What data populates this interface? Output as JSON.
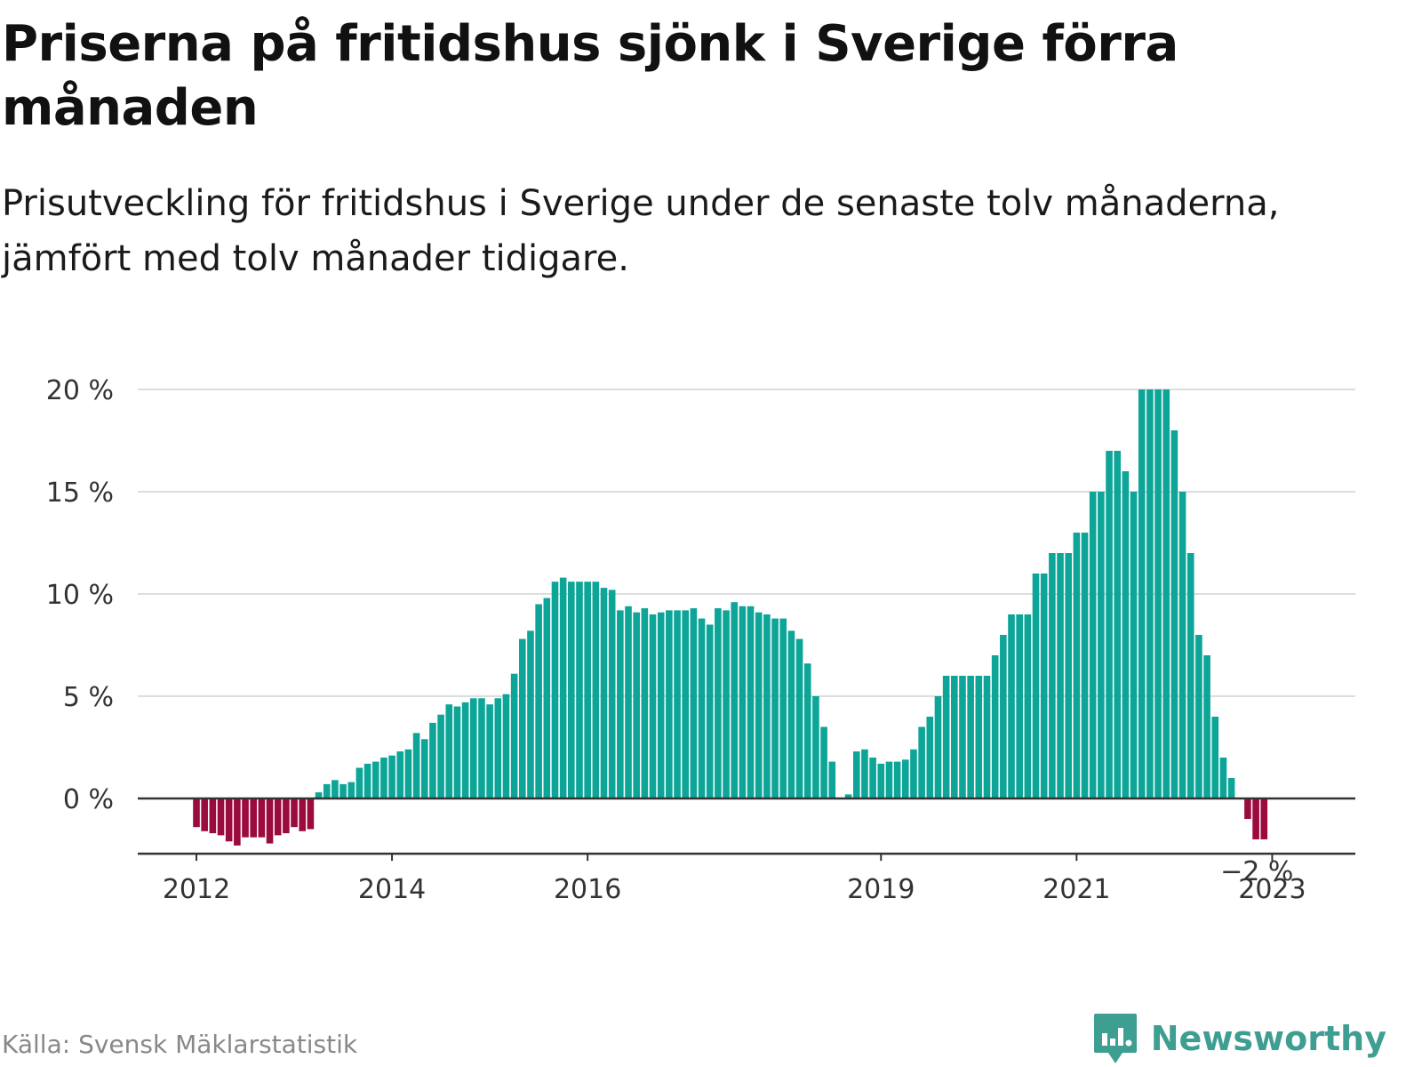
{
  "title": "Priserna på fritidshus sjönk i Sverige förra månaden",
  "subtitle": "Prisutveckling för fritidshus i Sverige under de senaste tolv månaderna, jämfört med tolv månader tidigare.",
  "source": "Källa: Svensk Mäklarstatistik",
  "brand": {
    "name": "Newsworthy",
    "icon": "newsworthy-logo-icon",
    "color": "#3e9e92"
  },
  "colors": {
    "positive": "#0ca597",
    "negative": "#9b0b3d",
    "grid": "#dddddd",
    "axis": "#333333"
  },
  "chart_data": {
    "type": "bar",
    "start_month": "2012-01",
    "y_unit": "%",
    "ylim": [
      -2.7,
      20
    ],
    "y_ticks": [
      0,
      5,
      10,
      15,
      20
    ],
    "y_tick_labels": [
      "0 %",
      "5 %",
      "10 %",
      "15 %",
      "20 %"
    ],
    "x_tick_labels": [
      "2012",
      "2014",
      "2016",
      "2019",
      "2021",
      "2023"
    ],
    "x_tick_months": [
      "2012-01",
      "2014-01",
      "2016-01",
      "2019-01",
      "2021-01",
      "2023-01"
    ],
    "last_value_label": "−2 %",
    "grid": true,
    "values": [
      -1.4,
      -1.6,
      -1.7,
      -1.8,
      -2.1,
      -2.3,
      -1.9,
      -1.9,
      -1.9,
      -2.2,
      -1.8,
      -1.7,
      -1.4,
      -1.6,
      -1.5,
      0.3,
      0.7,
      0.9,
      0.7,
      0.8,
      1.5,
      1.7,
      1.8,
      2.0,
      2.1,
      2.3,
      2.4,
      3.2,
      2.9,
      3.7,
      4.1,
      4.6,
      4.5,
      4.7,
      4.9,
      4.9,
      4.6,
      4.9,
      5.1,
      6.1,
      7.8,
      8.2,
      9.5,
      9.8,
      10.6,
      10.8,
      10.6,
      10.6,
      10.6,
      10.6,
      10.3,
      10.2,
      9.2,
      9.4,
      9.1,
      9.3,
      9.0,
      9.1,
      9.2,
      9.2,
      9.2,
      9.3,
      8.8,
      8.5,
      9.3,
      9.2,
      9.6,
      9.4,
      9.4,
      9.1,
      9.0,
      8.8,
      8.8,
      8.2,
      7.8,
      6.6,
      5.0,
      3.5,
      1.8,
      0,
      0.2,
      2.3,
      2.4,
      2.0,
      1.7,
      1.8,
      1.8,
      1.9,
      2.4,
      3.5,
      4.0,
      5.0,
      6.0,
      6.0,
      6.0,
      6.0,
      6.0,
      6.0,
      7.0,
      8.0,
      9.0,
      9.0,
      9.0,
      11.0,
      11.0,
      12.0,
      12.0,
      12.0,
      13.0,
      13.0,
      15.0,
      15.0,
      17.0,
      17.0,
      16.0,
      15.0,
      20.0,
      20.0,
      20.0,
      20.0,
      18.0,
      15.0,
      12.0,
      8.0,
      7.0,
      4.0,
      2.0,
      1.0,
      0,
      -1.0,
      -2.0,
      -2.0
    ]
  }
}
